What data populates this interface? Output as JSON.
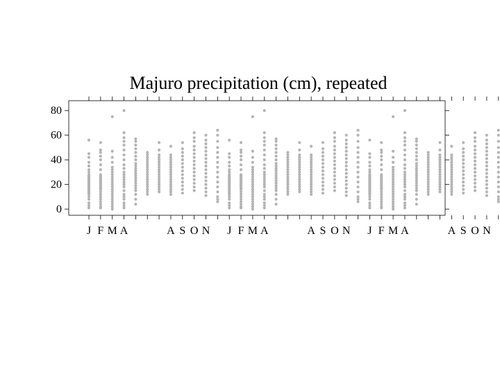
{
  "chart_data": {
    "type": "scatter",
    "title": "Majuro precipitation (cm), repeated",
    "xlabel": "",
    "ylabel": "",
    "ylim": [
      -5,
      88
    ],
    "yticks": [
      0,
      20,
      40,
      60,
      80
    ],
    "grid": false,
    "point_color": "#b4b4b4",
    "repeats": 3,
    "month_tick_labels": [
      "J",
      "F",
      "M",
      "A",
      "",
      "",
      "",
      "A",
      "S",
      "O",
      "N",
      ""
    ],
    "months": [
      {
        "month": 1,
        "values": [
          1,
          3,
          5,
          8,
          10,
          12,
          13,
          14,
          15,
          16,
          17,
          18,
          19,
          20,
          21,
          22,
          23,
          24,
          25,
          26,
          27,
          28,
          30,
          32,
          35,
          38,
          42,
          45,
          56
        ]
      },
      {
        "month": 2,
        "values": [
          1,
          2,
          4,
          6,
          8,
          10,
          12,
          14,
          16,
          17,
          18,
          19,
          20,
          21,
          22,
          23,
          24,
          25,
          26,
          27,
          28,
          32,
          36,
          40,
          43,
          46,
          48,
          54
        ]
      },
      {
        "month": 3,
        "values": [
          0,
          2,
          4,
          6,
          8,
          10,
          12,
          14,
          16,
          18,
          20,
          22,
          24,
          26,
          28,
          30,
          32,
          34,
          38,
          42,
          47,
          75
        ]
      },
      {
        "month": 4,
        "values": [
          1,
          3,
          5,
          8,
          10,
          12,
          15,
          18,
          20,
          22,
          24,
          26,
          28,
          30,
          33,
          36,
          40,
          44,
          48,
          52,
          55,
          58,
          62,
          80
        ]
      },
      {
        "month": 5,
        "values": [
          4,
          8,
          12,
          15,
          17,
          19,
          21,
          23,
          25,
          27,
          29,
          31,
          33,
          35,
          37,
          40,
          43,
          46,
          49,
          52,
          55,
          57
        ]
      },
      {
        "month": 6,
        "values": [
          12,
          14,
          16,
          18,
          20,
          22,
          24,
          26,
          28,
          30,
          32,
          34,
          36,
          38,
          40,
          42,
          44,
          46
        ]
      },
      {
        "month": 7,
        "values": [
          14,
          16,
          18,
          20,
          22,
          24,
          26,
          28,
          30,
          32,
          34,
          36,
          38,
          40,
          42,
          44,
          48,
          54
        ]
      },
      {
        "month": 8,
        "values": [
          12,
          14,
          16,
          18,
          20,
          22,
          24,
          26,
          28,
          30,
          32,
          34,
          36,
          38,
          40,
          42,
          44,
          51
        ]
      },
      {
        "month": 9,
        "values": [
          13,
          16,
          19,
          22,
          25,
          28,
          31,
          34,
          37,
          40,
          43,
          46,
          49,
          54
        ]
      },
      {
        "month": 10,
        "values": [
          15,
          18,
          21,
          24,
          27,
          30,
          33,
          36,
          39,
          42,
          45,
          48,
          51,
          55,
          58,
          62
        ]
      },
      {
        "month": 11,
        "values": [
          11,
          14,
          17,
          20,
          23,
          26,
          29,
          32,
          35,
          38,
          41,
          44,
          47,
          50,
          53,
          56,
          60
        ]
      },
      {
        "month": 12,
        "values": [
          6,
          8,
          10,
          14,
          18,
          22,
          26,
          30,
          34,
          38,
          42,
          46,
          50,
          55,
          60,
          64
        ]
      }
    ]
  }
}
